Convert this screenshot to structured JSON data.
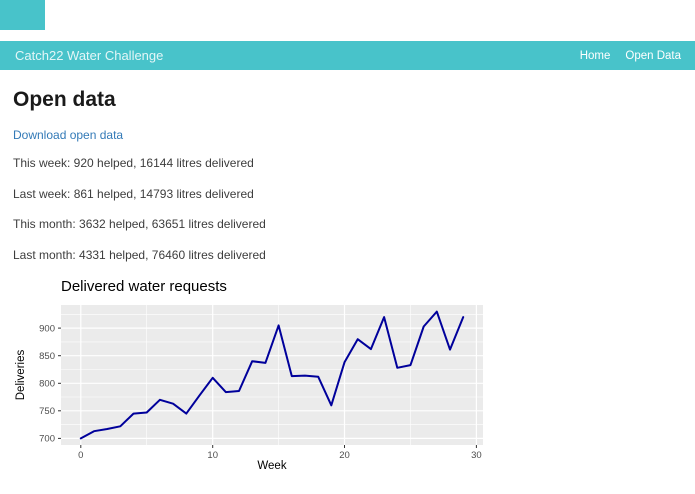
{
  "theme": {
    "accent": "#48c3ca",
    "link_color": "#337ab7",
    "chart_line_color": "#00009b",
    "chart_panel_color": "#ebebeb"
  },
  "navbar": {
    "brand": "Catch22 Water Challenge",
    "links": [
      {
        "label": "Home"
      },
      {
        "label": "Open Data"
      }
    ]
  },
  "page": {
    "title": "Open data",
    "download_link": "Download open data",
    "stats": [
      "This week: 920 helped, 16144 litres delivered",
      "Last week: 861 helped, 14793 litres delivered",
      "This month: 3632 helped, 63651 litres delivered",
      "Last month: 4331 helped, 76460 litres delivered"
    ]
  },
  "chart_data": {
    "type": "line",
    "title": "Delivered water requests",
    "xlabel": "Week",
    "ylabel": "Deliveries",
    "x": [
      0,
      1,
      2,
      3,
      4,
      5,
      6,
      7,
      8,
      9,
      10,
      11,
      12,
      13,
      14,
      15,
      16,
      17,
      18,
      19,
      20,
      21,
      22,
      23,
      24,
      25,
      26,
      27,
      28,
      29
    ],
    "values": [
      700,
      713,
      717,
      722,
      745,
      747,
      770,
      763,
      745,
      778,
      810,
      784,
      786,
      840,
      837,
      905,
      813,
      814,
      812,
      760,
      838,
      880,
      862,
      920,
      828,
      833,
      903,
      930,
      861,
      920
    ],
    "xlim": [
      -1.5,
      30.5
    ],
    "ylim": [
      688,
      942
    ],
    "xticks": [
      0,
      10,
      20,
      30
    ],
    "yticks": [
      700,
      750,
      800,
      850,
      900
    ],
    "xticks_minor": [
      5,
      15,
      25
    ],
    "yticks_minor": [
      725,
      775,
      825,
      875,
      925
    ],
    "grid": true,
    "legend": "none",
    "line_color": "#00009b",
    "panel_bg": "#ebebeb"
  }
}
